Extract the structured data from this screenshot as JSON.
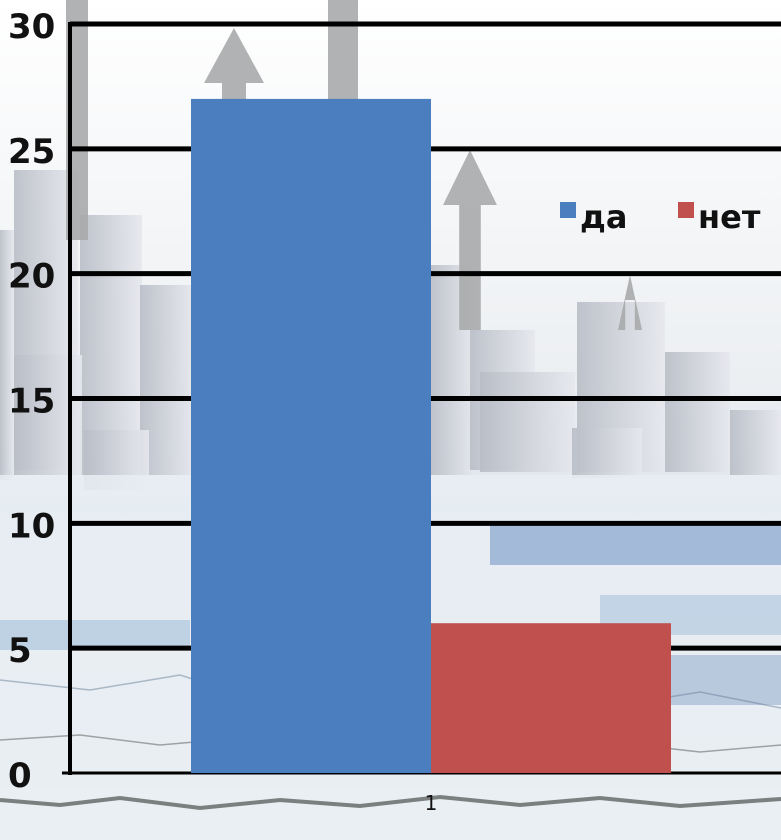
{
  "chart_data": {
    "type": "bar",
    "categories": [
      "1"
    ],
    "series": [
      {
        "name": "да",
        "values": [
          27
        ],
        "color": "#4a7ebf"
      },
      {
        "name": "нет",
        "values": [
          6
        ],
        "color": "#c0504d"
      }
    ],
    "ylim": [
      0,
      30
    ],
    "yticks": [
      0,
      5,
      10,
      15,
      20,
      25,
      30
    ],
    "grid": true,
    "legend_position": "top-right",
    "background": "stock-market-photo"
  }
}
